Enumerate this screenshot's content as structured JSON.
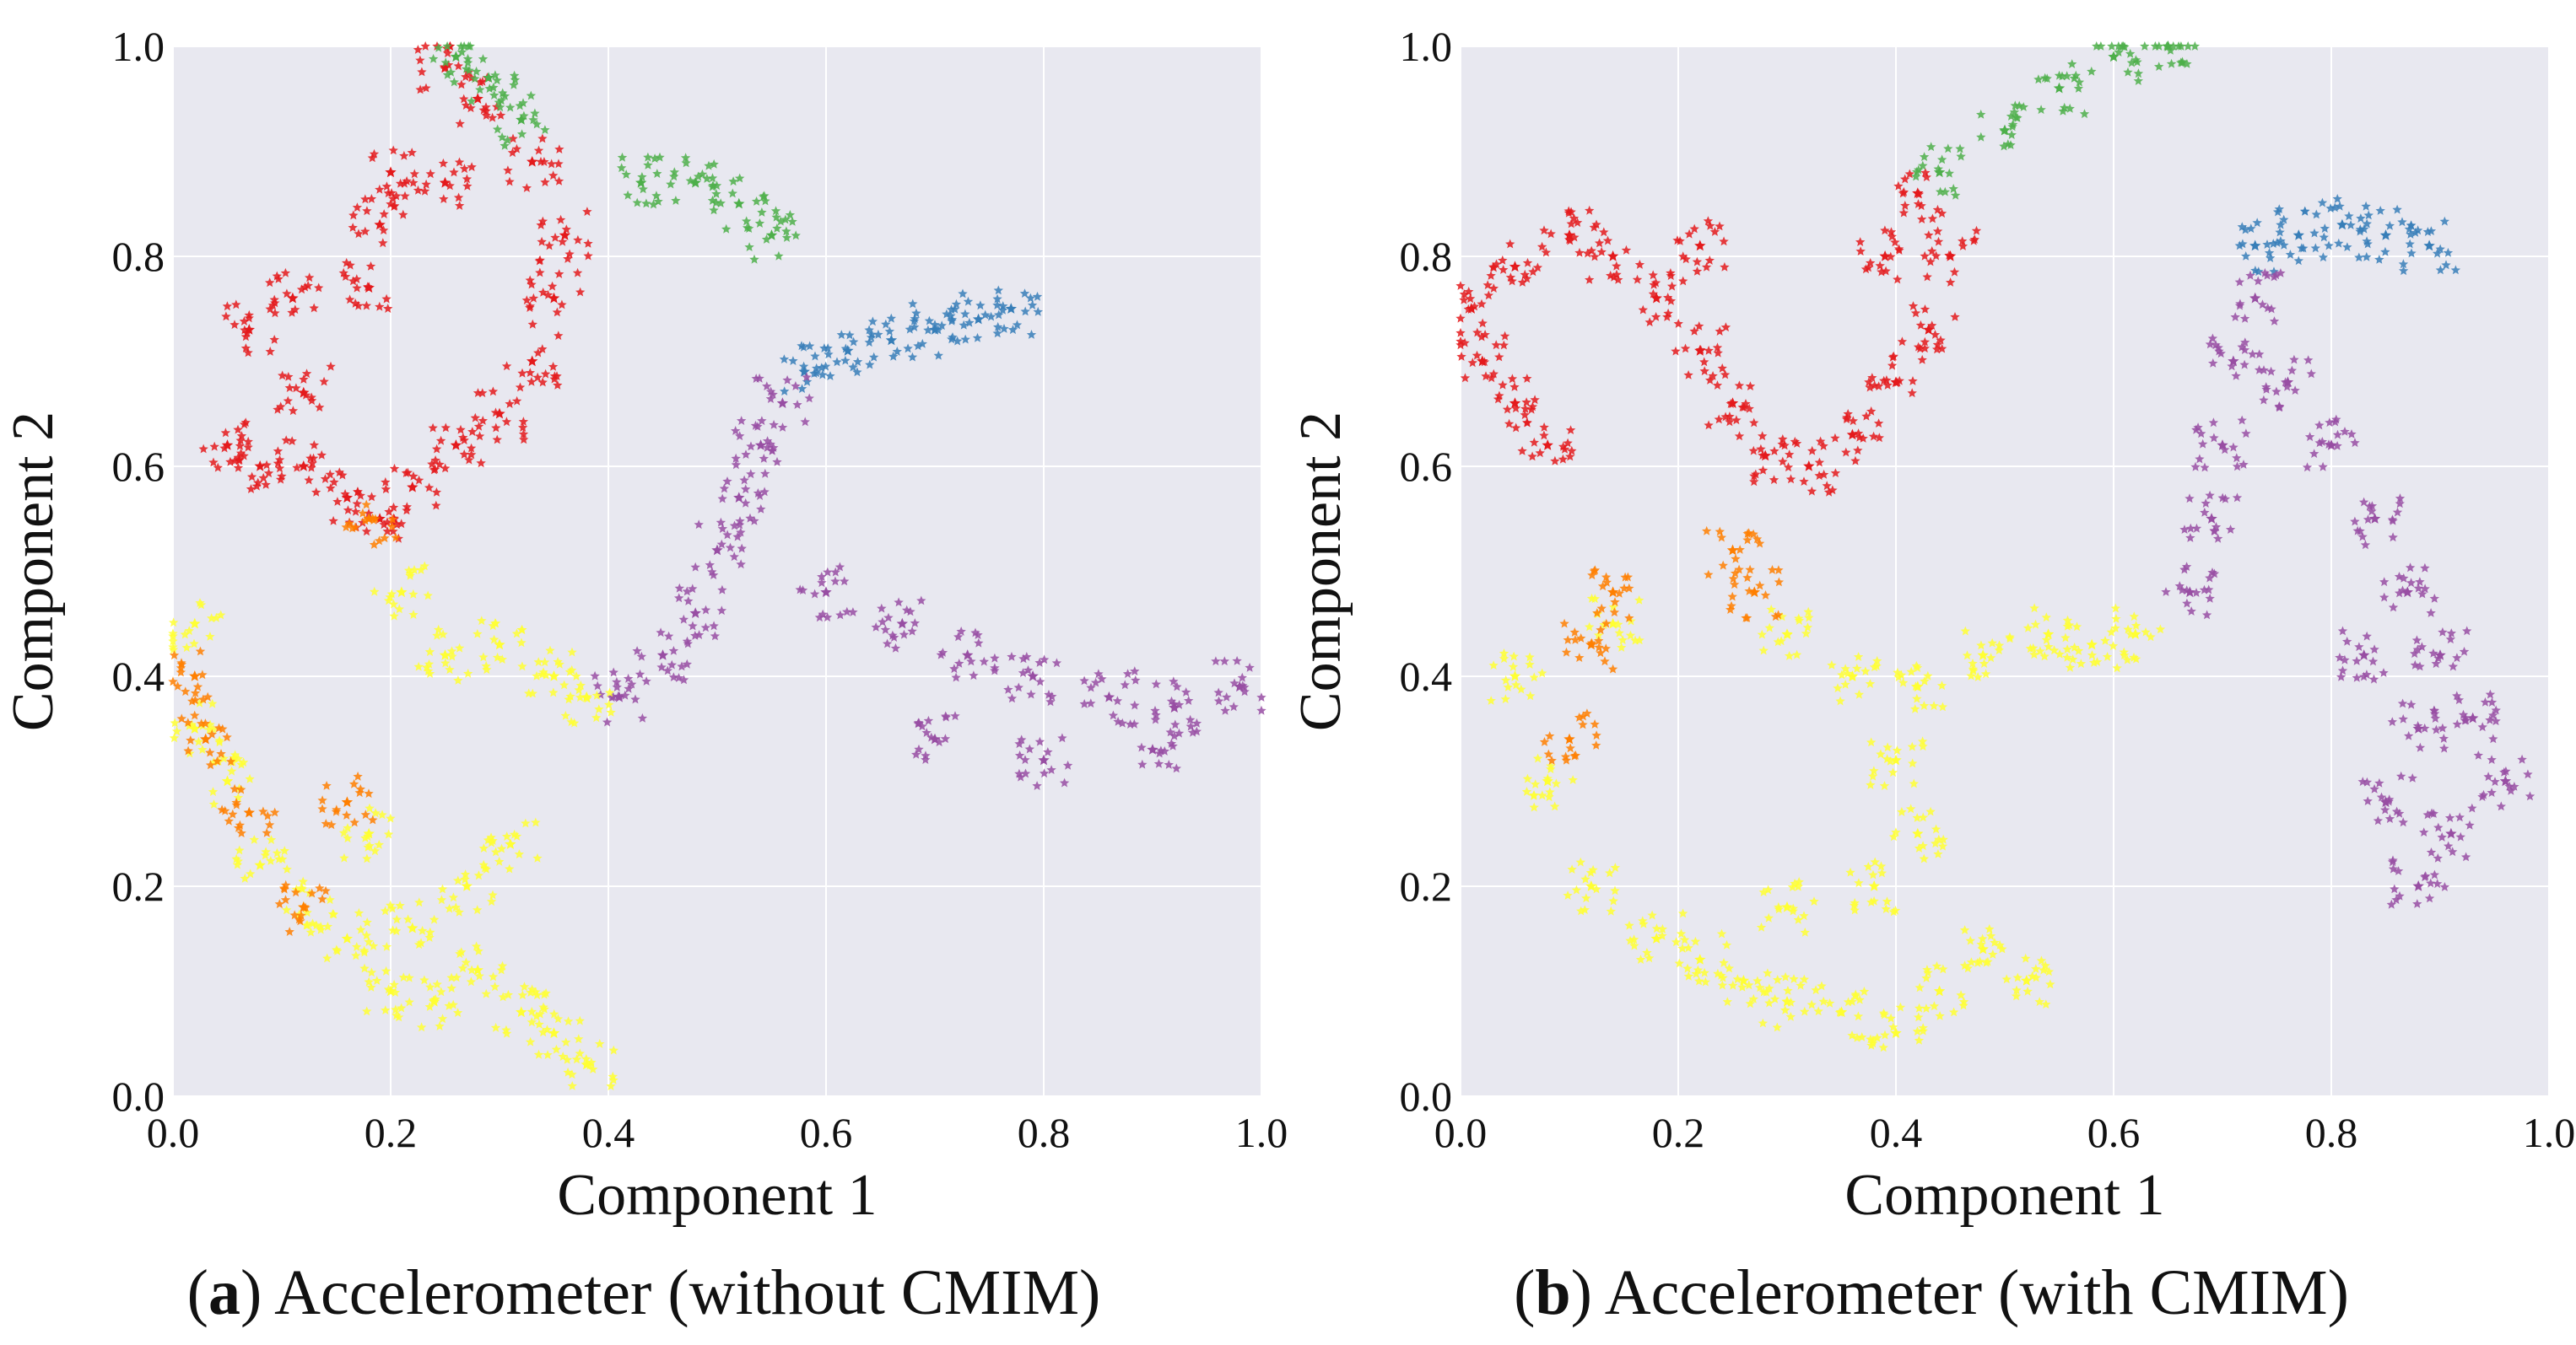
{
  "chart_data": [
    {
      "type": "scatter",
      "caption_letter": "a",
      "caption_text": "Accelerometer (without CMIM)",
      "xlabel": "Component 1",
      "ylabel": "Component 2",
      "xlim": [
        0.0,
        1.0
      ],
      "ylim": [
        0.0,
        1.0
      ],
      "xticks": [
        "0.0",
        "0.2",
        "0.4",
        "0.6",
        "0.8",
        "1.0"
      ],
      "yticks": [
        "0.0",
        "0.2",
        "0.4",
        "0.6",
        "0.8",
        "1.0"
      ],
      "grid": true,
      "background": "#e8e8f0",
      "marker": "star",
      "clusters": [
        {
          "color": "#e41a1c",
          "points": [
            [
              0.05,
              0.62
            ],
            [
              0.08,
              0.6
            ],
            [
              0.12,
              0.6
            ],
            [
              0.16,
              0.57
            ],
            [
              0.19,
              0.55
            ],
            [
              0.22,
              0.58
            ],
            [
              0.26,
              0.62
            ],
            [
              0.3,
              0.65
            ],
            [
              0.33,
              0.7
            ],
            [
              0.35,
              0.76
            ],
            [
              0.36,
              0.82
            ],
            [
              0.07,
              0.73
            ],
            [
              0.11,
              0.76
            ],
            [
              0.12,
              0.67
            ],
            [
              0.18,
              0.77
            ],
            [
              0.19,
              0.83
            ],
            [
              0.2,
              0.88
            ],
            [
              0.25,
              0.87
            ],
            [
              0.25,
              0.98
            ],
            [
              0.28,
              0.95
            ],
            [
              0.33,
              0.89
            ]
          ]
        },
        {
          "color": "#4daf4a",
          "points": [
            [
              0.26,
              0.99
            ],
            [
              0.29,
              0.97
            ],
            [
              0.32,
              0.93
            ],
            [
              0.43,
              0.87
            ],
            [
              0.48,
              0.87
            ],
            [
              0.52,
              0.85
            ],
            [
              0.55,
              0.82
            ]
          ]
        },
        {
          "color": "#377eb8",
          "points": [
            [
              0.58,
              0.69
            ],
            [
              0.62,
              0.71
            ],
            [
              0.66,
              0.72
            ],
            [
              0.7,
              0.73
            ],
            [
              0.74,
              0.74
            ],
            [
              0.77,
              0.75
            ]
          ]
        },
        {
          "color": "#984ea3",
          "points": [
            [
              0.41,
              0.38
            ],
            [
              0.45,
              0.42
            ],
            [
              0.48,
              0.46
            ],
            [
              0.5,
              0.52
            ],
            [
              0.52,
              0.57
            ],
            [
              0.54,
              0.62
            ],
            [
              0.56,
              0.66
            ],
            [
              0.6,
              0.48
            ],
            [
              0.67,
              0.45
            ],
            [
              0.73,
              0.42
            ],
            [
              0.79,
              0.4
            ],
            [
              0.86,
              0.38
            ],
            [
              0.92,
              0.37
            ],
            [
              0.98,
              0.39
            ],
            [
              0.7,
              0.34
            ],
            [
              0.8,
              0.32
            ],
            [
              0.9,
              0.33
            ]
          ]
        },
        {
          "color": "#ffff33",
          "points": [
            [
              0.21,
              0.48
            ],
            [
              0.25,
              0.42
            ],
            [
              0.3,
              0.43
            ],
            [
              0.35,
              0.4
            ],
            [
              0.38,
              0.38
            ],
            [
              0.02,
              0.45
            ],
            [
              0.02,
              0.35
            ],
            [
              0.05,
              0.3
            ],
            [
              0.08,
              0.22
            ],
            [
              0.12,
              0.18
            ],
            [
              0.16,
              0.15
            ],
            [
              0.2,
              0.1
            ],
            [
              0.24,
              0.09
            ],
            [
              0.28,
              0.12
            ],
            [
              0.32,
              0.08
            ],
            [
              0.35,
              0.06
            ],
            [
              0.38,
              0.03
            ],
            [
              0.22,
              0.16
            ],
            [
              0.27,
              0.2
            ],
            [
              0.31,
              0.24
            ],
            [
              0.18,
              0.25
            ]
          ]
        },
        {
          "color": "#ff7f00",
          "points": [
            [
              0.02,
              0.4
            ],
            [
              0.03,
              0.34
            ],
            [
              0.07,
              0.27
            ],
            [
              0.16,
              0.28
            ],
            [
              0.18,
              0.55
            ],
            [
              0.12,
              0.18
            ]
          ]
        }
      ]
    },
    {
      "type": "scatter",
      "caption_letter": "b",
      "caption_text": "Accelerometer (with CMIM)",
      "xlabel": "Component 1",
      "ylabel": "Component 2",
      "xlim": [
        0.0,
        1.0
      ],
      "ylim": [
        0.0,
        1.0
      ],
      "xticks": [
        "0.0",
        "0.2",
        "0.4",
        "0.6",
        "0.8",
        "1.0"
      ],
      "yticks": [
        "0.0",
        "0.2",
        "0.4",
        "0.6",
        "0.8",
        "1.0"
      ],
      "grid": true,
      "background": "#e8e8f0",
      "marker": "star",
      "clusters": [
        {
          "color": "#e41a1c",
          "points": [
            [
              0.01,
              0.75
            ],
            [
              0.02,
              0.7
            ],
            [
              0.05,
              0.66
            ],
            [
              0.08,
              0.62
            ],
            [
              0.05,
              0.79
            ],
            [
              0.1,
              0.82
            ],
            [
              0.14,
              0.8
            ],
            [
              0.18,
              0.76
            ],
            [
              0.22,
              0.71
            ],
            [
              0.25,
              0.66
            ],
            [
              0.28,
              0.61
            ],
            [
              0.32,
              0.6
            ],
            [
              0.36,
              0.63
            ],
            [
              0.4,
              0.68
            ],
            [
              0.43,
              0.73
            ],
            [
              0.45,
              0.8
            ],
            [
              0.42,
              0.86
            ],
            [
              0.39,
              0.8
            ],
            [
              0.22,
              0.81
            ]
          ]
        },
        {
          "color": "#4daf4a",
          "points": [
            [
              0.44,
              0.88
            ],
            [
              0.5,
              0.92
            ],
            [
              0.55,
              0.96
            ],
            [
              0.6,
              0.99
            ],
            [
              0.65,
              1.0
            ]
          ]
        },
        {
          "color": "#377eb8",
          "points": [
            [
              0.73,
              0.81
            ],
            [
              0.77,
              0.82
            ],
            [
              0.81,
              0.83
            ],
            [
              0.85,
              0.82
            ],
            [
              0.89,
              0.81
            ]
          ]
        },
        {
          "color": "#984ea3",
          "points": [
            [
              0.67,
              0.48
            ],
            [
              0.69,
              0.55
            ],
            [
              0.7,
              0.62
            ],
            [
              0.71,
              0.7
            ],
            [
              0.73,
              0.76
            ],
            [
              0.76,
              0.68
            ],
            [
              0.8,
              0.62
            ],
            [
              0.84,
              0.55
            ],
            [
              0.87,
              0.48
            ],
            [
              0.9,
              0.42
            ],
            [
              0.93,
              0.36
            ],
            [
              0.96,
              0.3
            ],
            [
              0.85,
              0.28
            ],
            [
              0.88,
              0.2
            ],
            [
              0.91,
              0.25
            ],
            [
              0.83,
              0.42
            ],
            [
              0.88,
              0.35
            ]
          ]
        },
        {
          "color": "#ffff33",
          "points": [
            [
              0.05,
              0.4
            ],
            [
              0.08,
              0.3
            ],
            [
              0.12,
              0.2
            ],
            [
              0.18,
              0.15
            ],
            [
              0.22,
              0.13
            ],
            [
              0.26,
              0.11
            ],
            [
              0.3,
              0.09
            ],
            [
              0.35,
              0.08
            ],
            [
              0.4,
              0.06
            ],
            [
              0.44,
              0.1
            ],
            [
              0.48,
              0.14
            ],
            [
              0.52,
              0.11
            ],
            [
              0.38,
              0.2
            ],
            [
              0.42,
              0.25
            ],
            [
              0.3,
              0.18
            ],
            [
              0.14,
              0.45
            ],
            [
              0.3,
              0.44
            ],
            [
              0.36,
              0.4
            ],
            [
              0.42,
              0.39
            ],
            [
              0.48,
              0.42
            ],
            [
              0.54,
              0.44
            ],
            [
              0.58,
              0.43
            ],
            [
              0.62,
              0.44
            ],
            [
              0.4,
              0.32
            ]
          ]
        },
        {
          "color": "#ff7f00",
          "points": [
            [
              0.12,
              0.43
            ],
            [
              0.14,
              0.48
            ],
            [
              0.1,
              0.34
            ],
            [
              0.25,
              0.52
            ],
            [
              0.27,
              0.48
            ]
          ]
        }
      ]
    }
  ]
}
